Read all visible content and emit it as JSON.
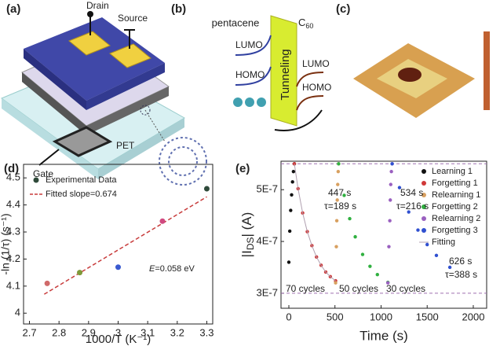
{
  "panel_labels": [
    "(a)",
    "(b)",
    "(c)",
    "(d)",
    "(e)"
  ],
  "diagram_a": {
    "labels": [
      "Drain",
      "Source",
      "Gate",
      "PET"
    ]
  },
  "diagram_b": {
    "left": "pentacene",
    "right_parts": [
      "C",
      "60"
    ],
    "barrier": "Tunneling",
    "levels": [
      "LUMO",
      "HOMO",
      "LUMO",
      "HOMO"
    ]
  },
  "chart_data": [
    {
      "type": "scatter",
      "xlabel": "1000/T (K⁻¹)",
      "ylabel": "-ln (1/τ) (s⁻¹)",
      "x": [
        2.76,
        2.87,
        3.0,
        3.15,
        3.3
      ],
      "values": [
        4.11,
        4.15,
        4.17,
        4.34,
        4.46
      ],
      "colors": [
        "#d06a6a",
        "#7f9a3a",
        "#3a5ad0",
        "#d04a80",
        "#2f4a3a"
      ],
      "fit": {
        "x": [
          2.75,
          3.3
        ],
        "values": [
          4.07,
          4.43
        ],
        "color": "#c83c3c"
      },
      "legend": [
        "Experimental Data",
        "Fitted slope=0.674"
      ],
      "annotation_parts": [
        "E",
        "=0.058 eV"
      ],
      "xlim": [
        2.68,
        3.32
      ],
      "xticks": [
        2.7,
        2.8,
        2.9,
        3.0,
        3.1,
        3.2,
        3.3
      ],
      "ylim": [
        3.96,
        4.55
      ],
      "yticks": [
        4.0,
        4.1,
        4.2,
        4.3,
        4.4,
        4.5
      ]
    },
    {
      "type": "line",
      "xlabel": "Time (s)",
      "ylabel_parts": [
        "|I",
        "DS",
        "| (A)"
      ],
      "series": [
        {
          "name": "Learning 1",
          "color": "#111111",
          "x": [
            0,
            10,
            20,
            30,
            40,
            50,
            60
          ],
          "values": [
            3.6e-07,
            4.2e-07,
            4.6e-07,
            4.9e-07,
            5.15e-07,
            5.35e-07,
            5.5e-07
          ]
        },
        {
          "name": "Forgetting 1",
          "color": "#d03838",
          "x": [
            60,
            100,
            150,
            200,
            250,
            300,
            350,
            400,
            450,
            507
          ],
          "values": [
            5.5e-07,
            5.02e-07,
            4.55e-07,
            4.19e-07,
            3.92e-07,
            3.7e-07,
            3.54e-07,
            3.41e-07,
            3.32e-07,
            3.24e-07
          ]
        },
        {
          "name": "Relearning 1",
          "color": "#d8a060",
          "x": [
            507,
            515,
            520,
            525,
            530,
            535,
            540
          ],
          "values": [
            3.2e-07,
            3.9e-07,
            4.4e-07,
            4.8e-07,
            5.1e-07,
            5.35e-07,
            5.5e-07
          ]
        },
        {
          "name": "Forgetting 2",
          "color": "#30b040",
          "x": [
            540,
            600,
            660,
            720,
            800,
            880,
            960,
            1074
          ],
          "values": [
            5.5e-07,
            4.89e-07,
            4.44e-07,
            4.09e-07,
            3.75e-07,
            3.52e-07,
            3.36e-07,
            3.21e-07
          ]
        },
        {
          "name": "Relearning 2",
          "color": "#9a60c0",
          "x": [
            1074,
            1085,
            1095,
            1100,
            1105,
            1112,
            1120
          ],
          "values": [
            3.2e-07,
            3.9e-07,
            4.4e-07,
            4.8e-07,
            5.1e-07,
            5.35e-07,
            5.5e-07
          ]
        },
        {
          "name": "Forgetting 3",
          "color": "#3050d0",
          "x": [
            1120,
            1200,
            1300,
            1400,
            1500,
            1600,
            1746
          ],
          "values": [
            5.5e-07,
            5.04e-07,
            4.57e-07,
            4.22e-07,
            3.94e-07,
            3.73e-07,
            3.5e-07
          ]
        },
        {
          "name": "Fitting",
          "color": "#b0a0b0",
          "line": true,
          "x": [
            60,
            100,
            150,
            200,
            250,
            300,
            350,
            400,
            450,
            507
          ],
          "values": [
            5.5e-07,
            5.02e-07,
            4.55e-07,
            4.19e-07,
            3.92e-07,
            3.7e-07,
            3.54e-07,
            3.41e-07,
            3.32e-07,
            3.24e-07
          ]
        }
      ],
      "annotations": [
        "447 s",
        "τ=189 s",
        "534 s",
        "τ=216 s",
        "626 s",
        "τ=388 s",
        "70 cycles",
        "50 cycles",
        "30 cycles"
      ],
      "hlines": [
        5.5e-07,
        3e-07
      ],
      "xlim": [
        -85,
        2145
      ],
      "xticks": [
        0,
        500,
        1000,
        1500,
        2000
      ],
      "ylim": [
        2.71e-07,
        5.55e-07
      ],
      "yticks": [
        {
          "value": 3e-07,
          "label": "3E-7"
        },
        {
          "value": 4e-07,
          "label": "4E-7"
        },
        {
          "value": 5e-07,
          "label": "5E-7"
        }
      ]
    }
  ]
}
